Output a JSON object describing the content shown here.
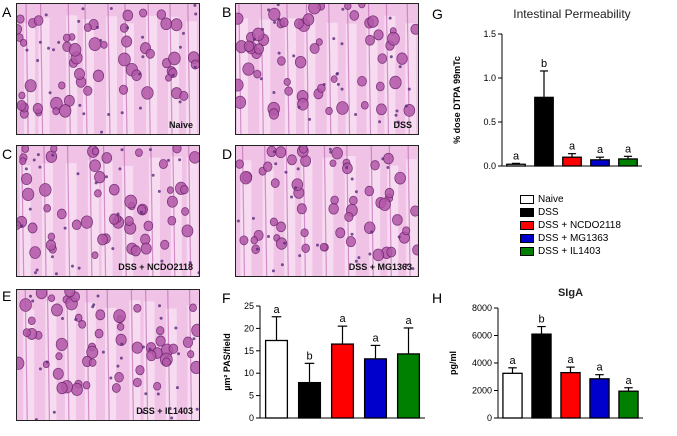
{
  "panels": {
    "A": {
      "letter": "A",
      "label": "Naive"
    },
    "B": {
      "letter": "B",
      "label": "DSS"
    },
    "C": {
      "letter": "C",
      "label": "DSS + NCDO2118"
    },
    "D": {
      "letter": "D",
      "label": "DSS + MG1363"
    },
    "E": {
      "letter": "E",
      "label": "DSS + IL1403"
    },
    "F": {
      "letter": "F"
    },
    "G": {
      "letter": "G"
    },
    "H": {
      "letter": "H"
    }
  },
  "legend": {
    "items": [
      {
        "label": "Naive",
        "color": "#ffffff"
      },
      {
        "label": "DSS",
        "color": "#000000"
      },
      {
        "label": "DSS + NCDO2118",
        "color": "#ff0000"
      },
      {
        "label": "DSS + MG1363",
        "color": "#0000cc"
      },
      {
        "label": "DSS + IL1403",
        "color": "#008000"
      }
    ]
  },
  "chart_data": [
    {
      "id": "G",
      "type": "bar",
      "title": "Intestinal Permeability",
      "ylabel": "% dose DTPA 99mTc",
      "xlabel": "",
      "categories": [
        "Naive",
        "DSS",
        "DSS + NCDO2118",
        "DSS + MG1363",
        "DSS + IL1403"
      ],
      "values": [
        0.02,
        0.78,
        0.1,
        0.07,
        0.08
      ],
      "errors": [
        0.01,
        0.3,
        0.04,
        0.03,
        0.03
      ],
      "letters": [
        "a",
        "b",
        "a",
        "a",
        "a"
      ],
      "colors": [
        "#ffffff",
        "#000000",
        "#ff0000",
        "#0000cc",
        "#008000"
      ],
      "ylim": [
        0,
        1.5
      ],
      "yticks": [
        0.0,
        0.5,
        1.0,
        1.5
      ],
      "ytick_labels": [
        "0.0",
        "0.5",
        "1.0",
        "1.5"
      ]
    },
    {
      "id": "F",
      "type": "bar",
      "title": "",
      "ylabel": "µm² PAS/field",
      "xlabel": "",
      "categories": [
        "Naive",
        "DSS",
        "DSS + NCDO2118",
        "DSS + MG1363",
        "DSS + IL1403"
      ],
      "values": [
        17.3,
        7.9,
        16.5,
        13.2,
        14.3
      ],
      "errors": [
        5.3,
        4.3,
        4.0,
        3.0,
        5.8
      ],
      "letters": [
        "a",
        "b",
        "a",
        "a",
        "a"
      ],
      "colors": [
        "#ffffff",
        "#000000",
        "#ff0000",
        "#0000cc",
        "#008000"
      ],
      "ylim": [
        0,
        25
      ],
      "yticks": [
        0,
        5,
        10,
        15,
        20,
        25
      ],
      "ytick_labels": [
        "0",
        "5",
        "10",
        "15",
        "20",
        "25"
      ]
    },
    {
      "id": "H",
      "type": "bar",
      "title": "SIgA",
      "ylabel": "pg/ml",
      "xlabel": "",
      "categories": [
        "Naive",
        "DSS",
        "DSS + NCDO2118",
        "DSS + MG1363",
        "DSS + IL1403"
      ],
      "values": [
        3250,
        6100,
        3300,
        2850,
        1950
      ],
      "errors": [
        400,
        550,
        400,
        300,
        250
      ],
      "letters": [
        "a",
        "b",
        "a",
        "a",
        "a"
      ],
      "colors": [
        "#ffffff",
        "#000000",
        "#ff0000",
        "#0000cc",
        "#008000"
      ],
      "ylim": [
        0,
        8000
      ],
      "yticks": [
        0,
        2000,
        4000,
        6000,
        8000
      ],
      "ytick_labels": [
        "0",
        "2000",
        "4000",
        "6000",
        "8000"
      ]
    }
  ]
}
